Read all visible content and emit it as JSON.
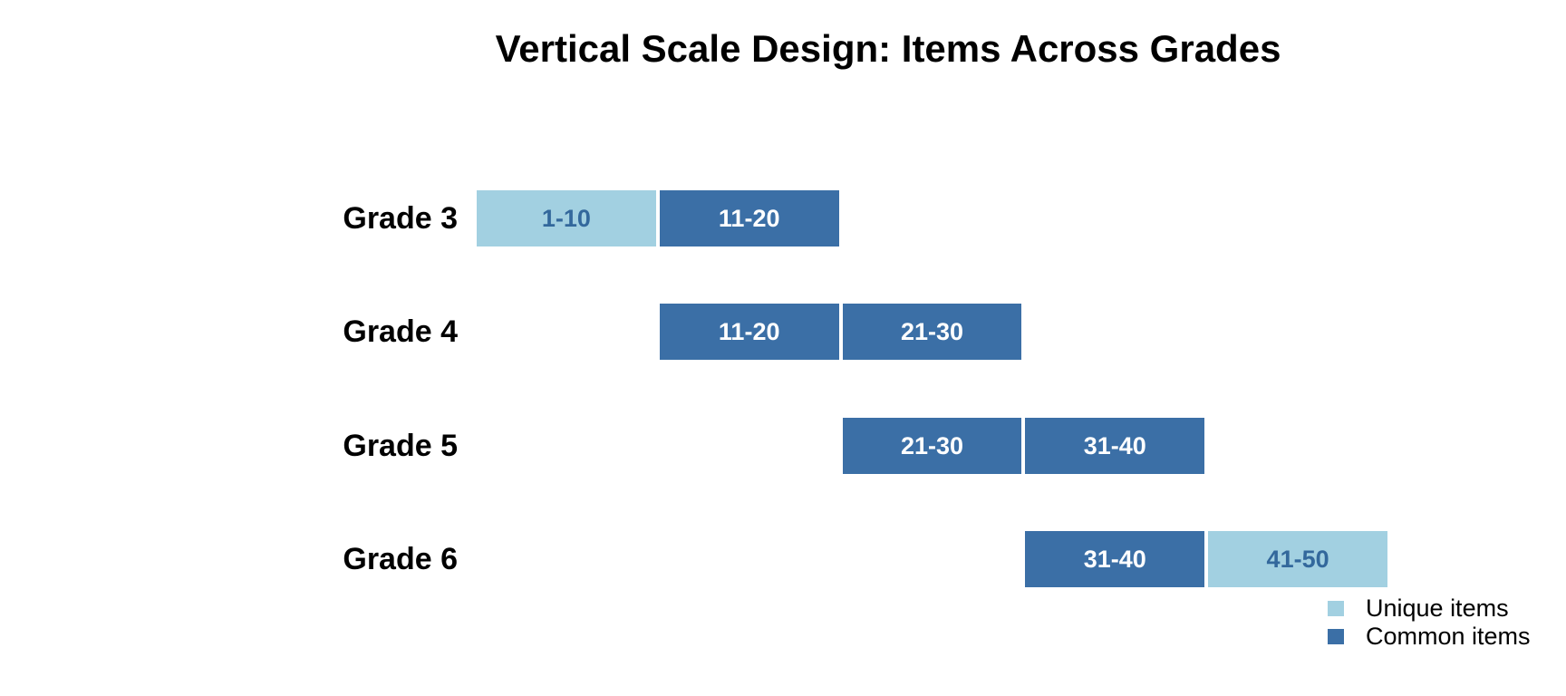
{
  "title": "Vertical Scale Design: Items Across Grades",
  "colors": {
    "background": "#FFFFFF",
    "unique": "#A2D0E1",
    "common": "#3B6FA6",
    "unique_label_text": "#33689C",
    "common_label_text": "#FFFFFF",
    "text": "#000000"
  },
  "legend": {
    "items": [
      {
        "label": "Unique items",
        "type": "unique"
      },
      {
        "label": "Common items",
        "type": "common"
      }
    ]
  },
  "chart_data": {
    "type": "bar",
    "orientation": "horizontal",
    "title": "Vertical Scale Design: Items Across Grades",
    "xlabel": "",
    "ylabel": "",
    "x_range": [
      0,
      50
    ],
    "grid": false,
    "axes_visible": false,
    "legend_position": "lower right",
    "legend": [
      "Unique items",
      "Common items"
    ],
    "categories": [
      "Grade 3",
      "Grade 4",
      "Grade 5",
      "Grade 6"
    ],
    "rows": [
      {
        "category": "Grade 3",
        "segments": [
          {
            "label": "1-10",
            "start": 1,
            "end": 10,
            "type": "unique"
          },
          {
            "label": "11-20",
            "start": 11,
            "end": 20,
            "type": "common"
          }
        ]
      },
      {
        "category": "Grade 4",
        "segments": [
          {
            "label": "11-20",
            "start": 11,
            "end": 20,
            "type": "common"
          },
          {
            "label": "21-30",
            "start": 21,
            "end": 30,
            "type": "common"
          }
        ]
      },
      {
        "category": "Grade 5",
        "segments": [
          {
            "label": "21-30",
            "start": 21,
            "end": 30,
            "type": "common"
          },
          {
            "label": "31-40",
            "start": 31,
            "end": 40,
            "type": "common"
          }
        ]
      },
      {
        "category": "Grade 6",
        "segments": [
          {
            "label": "31-40",
            "start": 31,
            "end": 40,
            "type": "common"
          },
          {
            "label": "41-50",
            "start": 41,
            "end": 50,
            "type": "unique"
          }
        ]
      }
    ]
  }
}
